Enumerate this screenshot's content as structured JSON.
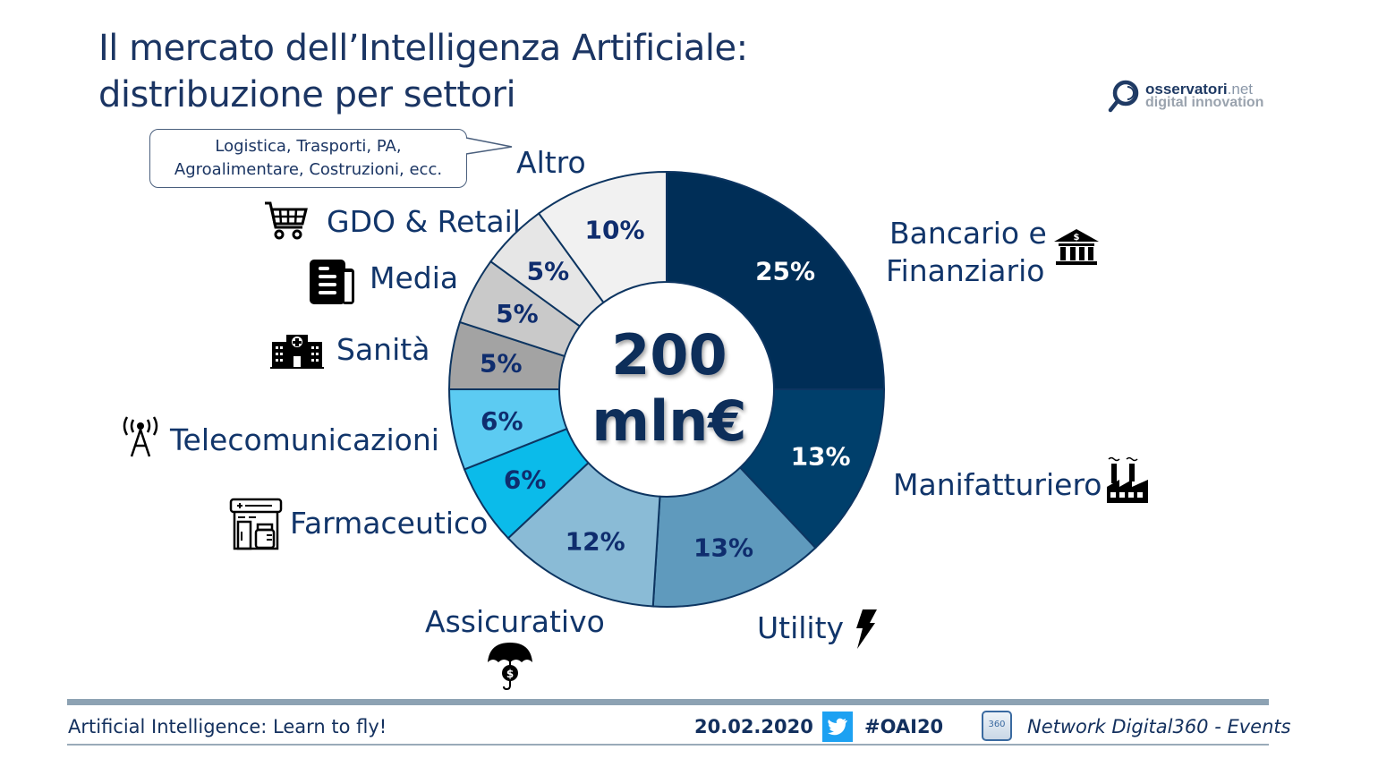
{
  "header": {
    "title_line1": "Il mercato dell’Intelligenza Artificiale:",
    "title_line2": "distribuzione per settori"
  },
  "logo": {
    "name": "osservatori",
    "suffix": ".net",
    "tagline": "digital innovation",
    "icon": "magnifier-logo-icon"
  },
  "callout": {
    "line1": "Logistica, Trasporti, PA,",
    "line2": "Agroalimentare, Costruzioni, ecc."
  },
  "chart_data": {
    "type": "pie",
    "variant": "donut",
    "title": "Il mercato dell’Intelligenza Artificiale: distribuzione per settori",
    "center_label_line1": "200",
    "center_label_line2": "mln€",
    "total": "200 mln€",
    "unit": "%",
    "start": "12 o'clock, clockwise",
    "slices": [
      {
        "name": "Bancario e Finanziario",
        "value": 25,
        "label": "25%",
        "color": "#002e57",
        "text_color": "#ffffff",
        "icon": "bank-icon"
      },
      {
        "name": "Manifatturiero",
        "value": 13,
        "label": "13%",
        "color": "#003f6b",
        "text_color": "#ffffff",
        "icon": "factory-icon"
      },
      {
        "name": "Utility",
        "value": 13,
        "label": "13%",
        "color": "#5f9abd",
        "text_color": "#0f2d6e",
        "icon": "lightning-icon"
      },
      {
        "name": "Assicurativo",
        "value": 12,
        "label": "12%",
        "color": "#8abbd6",
        "text_color": "#0f2d6e",
        "icon": "umbrella-dollar-icon"
      },
      {
        "name": "Farmaceutico",
        "value": 6,
        "label": "6%",
        "color": "#0bbbea",
        "text_color": "#0f2d6e",
        "icon": "pharmacy-icon"
      },
      {
        "name": "Telecomunicazioni",
        "value": 6,
        "label": "6%",
        "color": "#5ccbf2",
        "text_color": "#0f2d6e",
        "icon": "antenna-icon"
      },
      {
        "name": "Sanità",
        "value": 5,
        "label": "5%",
        "color": "#a3a3a3",
        "text_color": "#0f2d6e",
        "icon": "hospital-icon"
      },
      {
        "name": "Media",
        "value": 5,
        "label": "5%",
        "color": "#c9c9c9",
        "text_color": "#0f2d6e",
        "icon": "newspaper-icon"
      },
      {
        "name": "GDO & Retail",
        "value": 5,
        "label": "5%",
        "color": "#e6e6e6",
        "text_color": "#0f2d6e",
        "icon": "shopping-cart-icon"
      },
      {
        "name": "Altro",
        "value": 10,
        "label": "10%",
        "color": "#f1f1f1",
        "text_color": "#0f2d6e",
        "icon": ""
      }
    ],
    "legend": "outside labels around ring"
  },
  "labels": {
    "bancario_line1": "Bancario e",
    "bancario_line2": "Finanziario",
    "manifatturiero": "Manifatturiero",
    "utility": "Utility",
    "assicurativo": "Assicurativo",
    "farmaceutico": "Farmaceutico",
    "telecomunicazioni": "Telecomunicazioni",
    "sanita": "Sanità",
    "media": "Media",
    "gdo": "GDO & Retail",
    "altro": "Altro"
  },
  "footer": {
    "event_title": "Artificial Intelligence: Learn to fly!",
    "date": "20.02.2020",
    "hashtag": "#OAI20",
    "network": "Network Digital360 - Events",
    "badge_text": "360",
    "twitter_icon": "twitter-icon",
    "accent": "#1da1f2"
  }
}
